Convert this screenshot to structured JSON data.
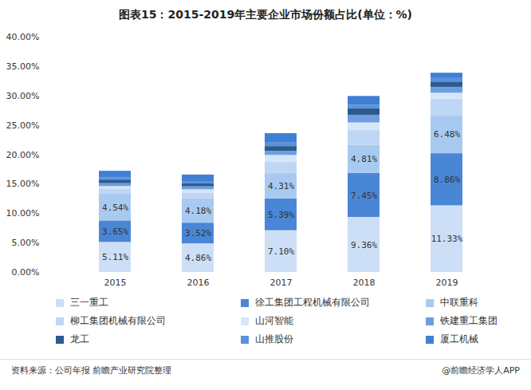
{
  "chart_data": {
    "type": "bar",
    "title": "图表15：2015-2019年主要企业市场份额占比(单位：%)",
    "source": "资料来源：公司年报 前瞻产业研究院整理",
    "credit": "@前瞻经济学人APP",
    "stacked": true,
    "grid": false,
    "legend": "bottom",
    "categories": [
      "2015",
      "2016",
      "2017",
      "2018",
      "2019"
    ],
    "ylim": [
      0,
      40
    ],
    "yticks": [
      {
        "value": 0,
        "label": "0.00%"
      },
      {
        "value": 5,
        "label": "5.00%"
      },
      {
        "value": 10,
        "label": "10.00%"
      },
      {
        "value": 15,
        "label": "15.00%"
      },
      {
        "value": 20,
        "label": "20.00%"
      },
      {
        "value": 25,
        "label": "25.00%"
      },
      {
        "value": 30,
        "label": "30.00%"
      },
      {
        "value": 35,
        "label": "35.00%"
      },
      {
        "value": 40,
        "label": "40.00%"
      }
    ],
    "series": [
      {
        "name": "三一重工",
        "color": "#cddff6",
        "values": [
          5.11,
          4.86,
          7.1,
          9.36,
          11.33
        ],
        "data_labels": true,
        "value_labels": [
          "5.11%",
          "4.86%",
          "7.10%",
          "9.36%",
          "11.33%"
        ]
      },
      {
        "name": "徐工集团工程机械有限公司",
        "color": "#4a86d6",
        "values": [
          3.65,
          3.52,
          5.39,
          7.45,
          8.86
        ],
        "data_labels": true,
        "value_labels": [
          "3.65%",
          "3.52%",
          "5.39%",
          "7.45%",
          "8.86%"
        ]
      },
      {
        "name": "中联重科",
        "color": "#a9caf0",
        "values": [
          4.54,
          4.18,
          4.31,
          4.81,
          6.48
        ],
        "data_labels": true,
        "value_labels": [
          "4.54%",
          "4.18%",
          "4.31%",
          "4.81%",
          "6.48%"
        ]
      },
      {
        "name": "柳工集团机械有限公司",
        "color": "#bdd7f4",
        "values": [
          0.9,
          0.9,
          1.9,
          2.5,
          2.8
        ]
      },
      {
        "name": "山河智能",
        "color": "#d6e6f9",
        "values": [
          0.4,
          0.6,
          1.2,
          1.3,
          1.0
        ]
      },
      {
        "name": "铁建重工集团",
        "color": "#6f9ee0",
        "values": [
          0.5,
          0.5,
          0.7,
          1.3,
          1.0
        ]
      },
      {
        "name": "龙工",
        "color": "#2a5b8c",
        "values": [
          0.6,
          0.5,
          0.8,
          1.1,
          0.9
        ]
      },
      {
        "name": "山推股份",
        "color": "#5b91dc",
        "values": [
          0.4,
          0.4,
          0.6,
          0.6,
          0.6
        ]
      },
      {
        "name": "厦工机械",
        "color": "#3f7fd4",
        "values": [
          1.1,
          1.1,
          1.6,
          1.5,
          0.9
        ]
      }
    ]
  }
}
